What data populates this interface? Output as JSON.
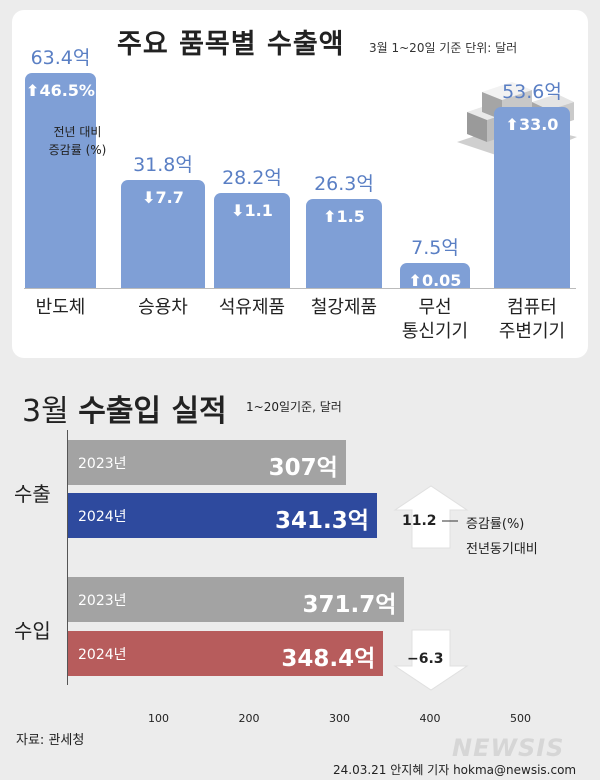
{
  "top": {
    "title": "주요 품목별 수출액",
    "subtitle": "3월 1~20일 기준 단위: 달러",
    "change_note": "전년 대비\n증감률 (%)"
  },
  "bottom": {
    "title_plain": "3월",
    "title_bold": "수출입 실적",
    "subtitle": "1~20일기준, 달러",
    "change_label": "증감률(%)",
    "change_sub": "전년동기대비",
    "source": "자료: 관세청",
    "credit": "24.03.21 안지혜 기자 hokma@newsis.com",
    "logo": "NEWSIS"
  },
  "chart_data": [
    {
      "type": "bar",
      "title": "주요 품목별 수출액",
      "unit": "억 달러",
      "categories": [
        "반도체",
        "승용차",
        "석유제품",
        "철강제품",
        "무선\n통신기기",
        "컴퓨터\n주변기기"
      ],
      "values": [
        63.4,
        31.8,
        28.2,
        26.3,
        7.5,
        53.6
      ],
      "value_labels": [
        "63.4억",
        "31.8억",
        "28.2억",
        "26.3억",
        "7.5억",
        "53.6억"
      ],
      "yoy_change_pct": [
        46.5,
        -7.7,
        -1.1,
        1.5,
        0.05,
        33.0
      ],
      "change_labels": [
        "46.5%",
        "7.7",
        "1.1",
        "1.5",
        "0.05",
        "33.0"
      ],
      "colors": {
        "bar": "#7f9fd6",
        "value_text": "#5a7fc4"
      }
    },
    {
      "type": "bar",
      "orientation": "horizontal",
      "title": "3월 수출입 실적",
      "unit": "억 달러",
      "groups": [
        "수출",
        "수입"
      ],
      "series": [
        {
          "name": "2023년",
          "values": [
            307,
            371.7
          ],
          "colors": [
            "#a3a3a3",
            "#a3a3a3"
          ]
        },
        {
          "name": "2024년",
          "values": [
            341.3,
            348.4
          ],
          "colors": [
            "#2e4a9e",
            "#b75c5c"
          ]
        }
      ],
      "value_labels": {
        "2023년": [
          "307억",
          "371.7억"
        ],
        "2024년": [
          "341.3억",
          "348.4억"
        ]
      },
      "yoy_change": [
        11.2,
        -6.3
      ],
      "change_labels": [
        "11.2",
        "−6.3"
      ],
      "xticks": [
        100,
        200,
        300,
        400,
        500
      ],
      "xlim": [
        0,
        500
      ]
    }
  ]
}
